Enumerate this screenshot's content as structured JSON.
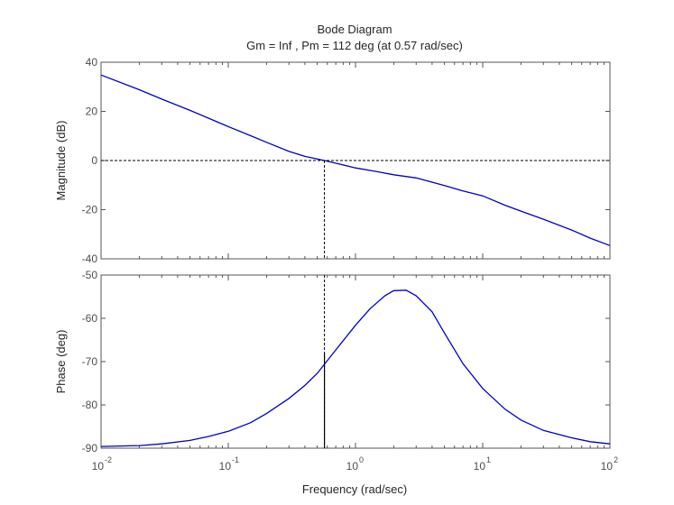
{
  "chart_data": {
    "type": "line",
    "title": "Bode Diagram",
    "subtitle": "Gm = Inf ,  Pm = 112 deg (at 0.57 rad/sec)",
    "xlabel": "Frequency  (rad/sec)",
    "xscale": "log",
    "xlim": [
      0.01,
      100
    ],
    "x_ticks": [
      {
        "base": "10",
        "exp": "-2"
      },
      {
        "base": "10",
        "exp": "-1"
      },
      {
        "base": "10",
        "exp": "0"
      },
      {
        "base": "10",
        "exp": "1"
      },
      {
        "base": "10",
        "exp": "2"
      }
    ],
    "line_color": "#0000cc",
    "margin_frequency": 0.57,
    "magnitude": {
      "ylabel": "Magnitude (dB)",
      "ylim": [
        -40,
        40
      ],
      "y_ticks": [
        "40",
        "20",
        "0",
        "-20",
        "-40"
      ],
      "zero_line": 0,
      "x": [
        0.01,
        0.02,
        0.03,
        0.05,
        0.07,
        0.1,
        0.15,
        0.2,
        0.3,
        0.4,
        0.57,
        0.7,
        1.0,
        1.5,
        2.0,
        3.0,
        5.0,
        7.0,
        10,
        15,
        20,
        30,
        50,
        70,
        100
      ],
      "y": [
        34.8,
        28.8,
        25.0,
        20.4,
        17.2,
        13.8,
        10.1,
        7.4,
        3.7,
        1.7,
        0.0,
        -1.1,
        -3.0,
        -4.6,
        -5.8,
        -7.1,
        -10.2,
        -12.4,
        -14.4,
        -18.2,
        -20.6,
        -23.9,
        -28.3,
        -31.6,
        -34.6
      ]
    },
    "phase": {
      "ylabel": "Phase (deg)",
      "ylim": [
        -90,
        -50
      ],
      "y_ticks": [
        "-50",
        "-60",
        "-70",
        "-80",
        "-90"
      ],
      "x": [
        0.01,
        0.02,
        0.03,
        0.05,
        0.07,
        0.1,
        0.15,
        0.2,
        0.3,
        0.4,
        0.5,
        0.7,
        1.0,
        1.3,
        1.7,
        2.0,
        2.5,
        3.0,
        4.0,
        5.0,
        7.0,
        10,
        15,
        20,
        30,
        50,
        70,
        100
      ],
      "y": [
        -89.6,
        -89.4,
        -89.0,
        -88.2,
        -87.3,
        -86.1,
        -84.1,
        -82.0,
        -78.5,
        -75.5,
        -72.7,
        -67.3,
        -61.6,
        -57.8,
        -54.8,
        -53.6,
        -53.5,
        -54.8,
        -58.5,
        -63.4,
        -70.5,
        -76.2,
        -81.0,
        -83.5,
        -85.9,
        -87.6,
        -88.5,
        -89.0
      ]
    }
  }
}
